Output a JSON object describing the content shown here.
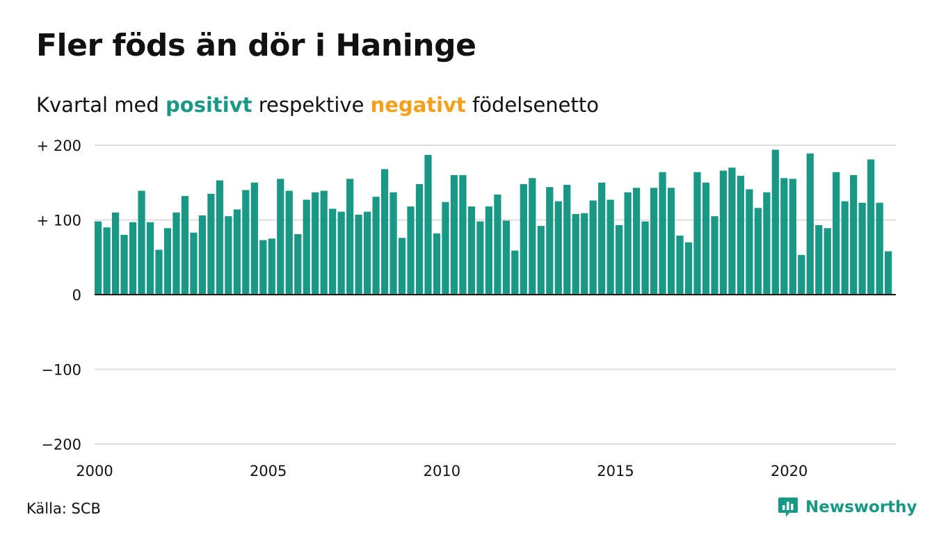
{
  "title": "Fler föds än dör i Haninge",
  "subtitle": {
    "prefix": "Kvartal med ",
    "positive": "positivt",
    "middle": " respektive ",
    "negative": "negativt",
    "suffix": " födelsenetto"
  },
  "source": "Källa: SCB",
  "brand": "Newsworthy",
  "colors": {
    "positive": "#1a9886",
    "negative": "#f6a01a",
    "grid": "#dddddd",
    "axis": "#111111"
  },
  "chart_data": {
    "type": "bar",
    "x_start": 2000.0,
    "x_step": 0.25,
    "xlim": [
      2000,
      2023.07
    ],
    "ylim": [
      -200,
      200
    ],
    "y_ticks": [
      200,
      100,
      0,
      -100,
      -200
    ],
    "y_tick_labels": [
      "+ 200",
      "+ 100",
      "0",
      "−100",
      "−200"
    ],
    "x_ticks": [
      2000,
      2005,
      2010,
      2015,
      2020
    ],
    "x_tick_labels": [
      "2000",
      "2005",
      "2010",
      "2015",
      "2020"
    ],
    "grid": true,
    "values": [
      98,
      90,
      110,
      80,
      97,
      139,
      97,
      60,
      89,
      110,
      132,
      83,
      106,
      135,
      153,
      105,
      114,
      140,
      150,
      73,
      75,
      155,
      139,
      81,
      127,
      137,
      139,
      115,
      111,
      155,
      107,
      111,
      131,
      168,
      137,
      76,
      118,
      148,
      187,
      82,
      124,
      160,
      160,
      118,
      98,
      118,
      134,
      99,
      59,
      148,
      156,
      92,
      144,
      125,
      147,
      108,
      109,
      126,
      150,
      127,
      93,
      137,
      143,
      98,
      143,
      164,
      143,
      79,
      70,
      164,
      150,
      105,
      166,
      170,
      159,
      141,
      116,
      137,
      194,
      156,
      155,
      53,
      189,
      93,
      89,
      164,
      125,
      160,
      123,
      181,
      123,
      58
    ]
  }
}
